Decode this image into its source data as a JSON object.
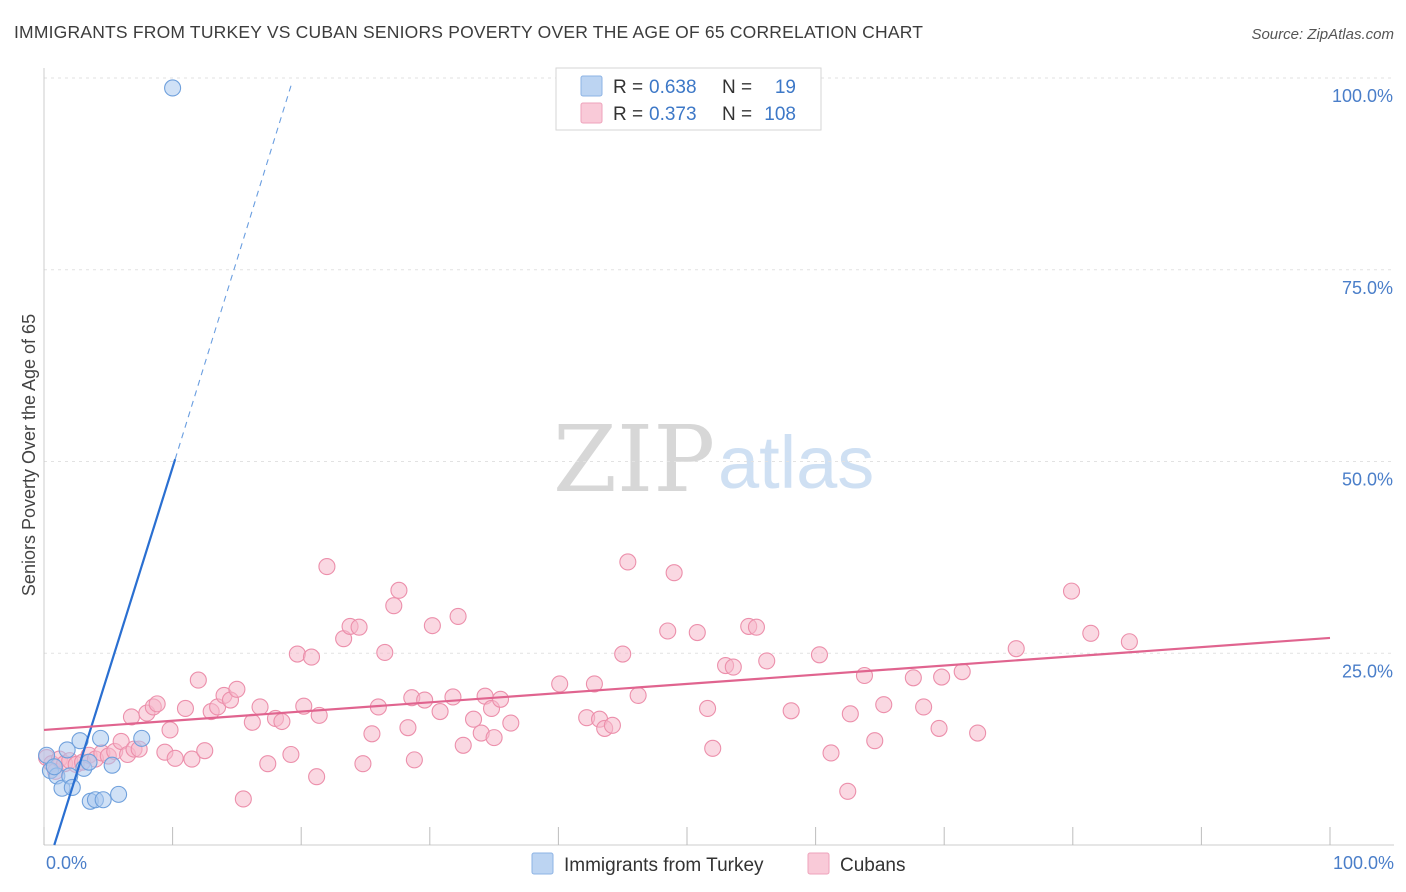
{
  "chart_data": {
    "type": "scatter",
    "title": "IMMIGRANTS FROM TURKEY VS CUBAN SENIORS POVERTY OVER THE AGE OF 65 CORRELATION CHART",
    "source": "Source: ZipAtlas.com",
    "xlabel": "",
    "ylabel": "Seniors Poverty Over the Age of 65",
    "xlim": [
      0,
      100
    ],
    "ylim": [
      0,
      100
    ],
    "x_tick_labels": [
      "0.0%",
      "100.0%"
    ],
    "y_tick_labels": [
      {
        "value": 25,
        "label": "25.0%"
      },
      {
        "value": 50,
        "label": "50.0%"
      },
      {
        "value": 75,
        "label": "75.0%"
      },
      {
        "value": 100,
        "label": "100.0%"
      }
    ],
    "watermark": {
      "zip": "ZIP",
      "atlas": "atlas"
    },
    "legend": {
      "rows": [
        {
          "r_label": "R =",
          "r_value": "0.638",
          "n_label": "N =",
          "n_value": "19",
          "color": "#a9c8ee"
        },
        {
          "r_label": "R =",
          "r_value": "0.373",
          "n_label": "N =",
          "n_value": "108",
          "color": "#f6b8cb"
        }
      ]
    },
    "series": [
      {
        "name": "Immigrants from Turkey",
        "color": "#a9c8ee",
        "stroke": "#6fa0dc",
        "trend_color": "#2a6fd1",
        "trend": {
          "x0": 0.8,
          "y0": 0,
          "x1": 10.2,
          "y1": 50.3,
          "dash_x1": 19.3,
          "dash_y1": 99.5
        },
        "points": [
          [
            10,
            98.7
          ],
          [
            0.2,
            11.7
          ],
          [
            0.5,
            9.7
          ],
          [
            1.0,
            9.0
          ],
          [
            1.4,
            7.4
          ],
          [
            1.8,
            12.4
          ],
          [
            2.0,
            9.0
          ],
          [
            2.2,
            7.5
          ],
          [
            2.8,
            13.6
          ],
          [
            3.1,
            10.0
          ],
          [
            3.5,
            10.8
          ],
          [
            3.6,
            5.7
          ],
          [
            4.0,
            5.9
          ],
          [
            4.4,
            13.9
          ],
          [
            4.6,
            5.9
          ],
          [
            5.3,
            10.4
          ],
          [
            5.8,
            6.6
          ],
          [
            7.6,
            13.9
          ],
          [
            0.8,
            10.2
          ]
        ]
      },
      {
        "name": "Cubans",
        "color": "#f6b8cb",
        "stroke": "#ec8fab",
        "trend_color": "#e0648f",
        "trend": {
          "x0": 0,
          "y0": 15.0,
          "x1": 100,
          "y1": 27.0
        },
        "points": [
          [
            0.2,
            11.4
          ],
          [
            0.6,
            10.6
          ],
          [
            0.9,
            9.6
          ],
          [
            1.2,
            11.2
          ],
          [
            1.6,
            10.6
          ],
          [
            2.0,
            11.0
          ],
          [
            2.5,
            10.5
          ],
          [
            3.0,
            10.8
          ],
          [
            3.5,
            11.7
          ],
          [
            4.0,
            11.2
          ],
          [
            4.5,
            12.0
          ],
          [
            5.0,
            11.6
          ],
          [
            5.5,
            12.2
          ],
          [
            6.0,
            13.5
          ],
          [
            6.5,
            11.8
          ],
          [
            7.0,
            12.5
          ],
          [
            7.4,
            12.5
          ],
          [
            6.8,
            16.7
          ],
          [
            8.0,
            17.2
          ],
          [
            8.5,
            18.0
          ],
          [
            8.8,
            18.4
          ],
          [
            9.4,
            12.1
          ],
          [
            9.8,
            15.0
          ],
          [
            10.2,
            11.3
          ],
          [
            11.0,
            17.8
          ],
          [
            11.5,
            11.2
          ],
          [
            12.0,
            21.5
          ],
          [
            12.5,
            12.3
          ],
          [
            13.0,
            17.4
          ],
          [
            13.5,
            18.0
          ],
          [
            14.0,
            19.5
          ],
          [
            14.5,
            18.9
          ],
          [
            15.0,
            20.3
          ],
          [
            15.5,
            6.0
          ],
          [
            16.2,
            16.0
          ],
          [
            16.8,
            18.0
          ],
          [
            17.4,
            10.6
          ],
          [
            18.0,
            16.5
          ],
          [
            18.5,
            16.1
          ],
          [
            19.2,
            11.8
          ],
          [
            19.7,
            24.9
          ],
          [
            20.2,
            18.1
          ],
          [
            20.8,
            24.5
          ],
          [
            21.4,
            16.9
          ],
          [
            21.2,
            8.9
          ],
          [
            22.0,
            36.3
          ],
          [
            23.3,
            26.9
          ],
          [
            23.8,
            28.5
          ],
          [
            24.5,
            28.4
          ],
          [
            24.8,
            10.6
          ],
          [
            25.5,
            14.5
          ],
          [
            26.0,
            18.0
          ],
          [
            26.5,
            25.1
          ],
          [
            27.2,
            31.2
          ],
          [
            27.6,
            33.2
          ],
          [
            28.3,
            15.3
          ],
          [
            28.6,
            19.2
          ],
          [
            28.8,
            11.1
          ],
          [
            29.6,
            18.9
          ],
          [
            30.2,
            28.6
          ],
          [
            30.8,
            17.4
          ],
          [
            31.8,
            19.3
          ],
          [
            32.2,
            29.8
          ],
          [
            32.6,
            13.0
          ],
          [
            33.4,
            16.4
          ],
          [
            34.0,
            14.6
          ],
          [
            34.3,
            19.4
          ],
          [
            34.8,
            17.8
          ],
          [
            35.0,
            14.0
          ],
          [
            35.5,
            19.0
          ],
          [
            36.3,
            15.9
          ],
          [
            40.1,
            21.0
          ],
          [
            42.2,
            16.6
          ],
          [
            42.8,
            21.0
          ],
          [
            43.2,
            16.4
          ],
          [
            43.6,
            15.2
          ],
          [
            44.2,
            15.6
          ],
          [
            45.0,
            24.9
          ],
          [
            45.4,
            36.9
          ],
          [
            46.2,
            19.5
          ],
          [
            48.5,
            27.9
          ],
          [
            49.0,
            35.5
          ],
          [
            50.8,
            27.7
          ],
          [
            51.6,
            17.8
          ],
          [
            52.0,
            12.6
          ],
          [
            53.0,
            23.4
          ],
          [
            53.6,
            23.2
          ],
          [
            54.8,
            28.5
          ],
          [
            55.4,
            28.4
          ],
          [
            56.2,
            24.0
          ],
          [
            58.1,
            17.5
          ],
          [
            60.3,
            24.8
          ],
          [
            61.2,
            12.0
          ],
          [
            62.7,
            17.1
          ],
          [
            62.5,
            7.0
          ],
          [
            63.8,
            22.1
          ],
          [
            64.6,
            13.6
          ],
          [
            65.3,
            18.3
          ],
          [
            67.6,
            21.8
          ],
          [
            68.4,
            18.0
          ],
          [
            69.6,
            15.2
          ],
          [
            69.8,
            21.9
          ],
          [
            71.4,
            22.6
          ],
          [
            72.6,
            14.6
          ],
          [
            75.6,
            25.6
          ],
          [
            79.9,
            33.1
          ],
          [
            81.4,
            27.6
          ],
          [
            84.4,
            26.5
          ]
        ]
      }
    ]
  },
  "bottom_legend": [
    "Immigrants from Turkey",
    "Cubans"
  ]
}
